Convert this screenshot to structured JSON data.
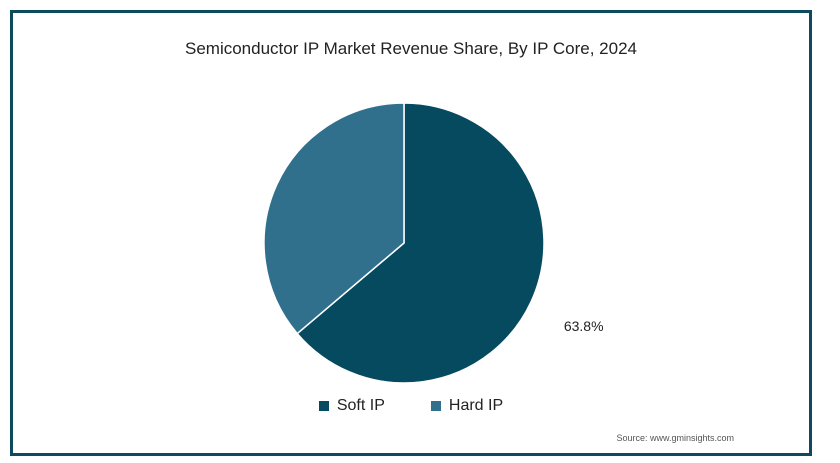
{
  "chart_data": {
    "type": "pie",
    "title": "Semiconductor IP Market Revenue Share, By IP Core, 2024",
    "series": [
      {
        "name": "Soft IP",
        "value": 63.8,
        "color": "#064a60",
        "label": "63.8%"
      },
      {
        "name": "Hard IP",
        "value": 36.2,
        "color": "#31708d",
        "label": ""
      }
    ],
    "legend_position": "bottom"
  },
  "source": "Source: www.gminsights.com"
}
